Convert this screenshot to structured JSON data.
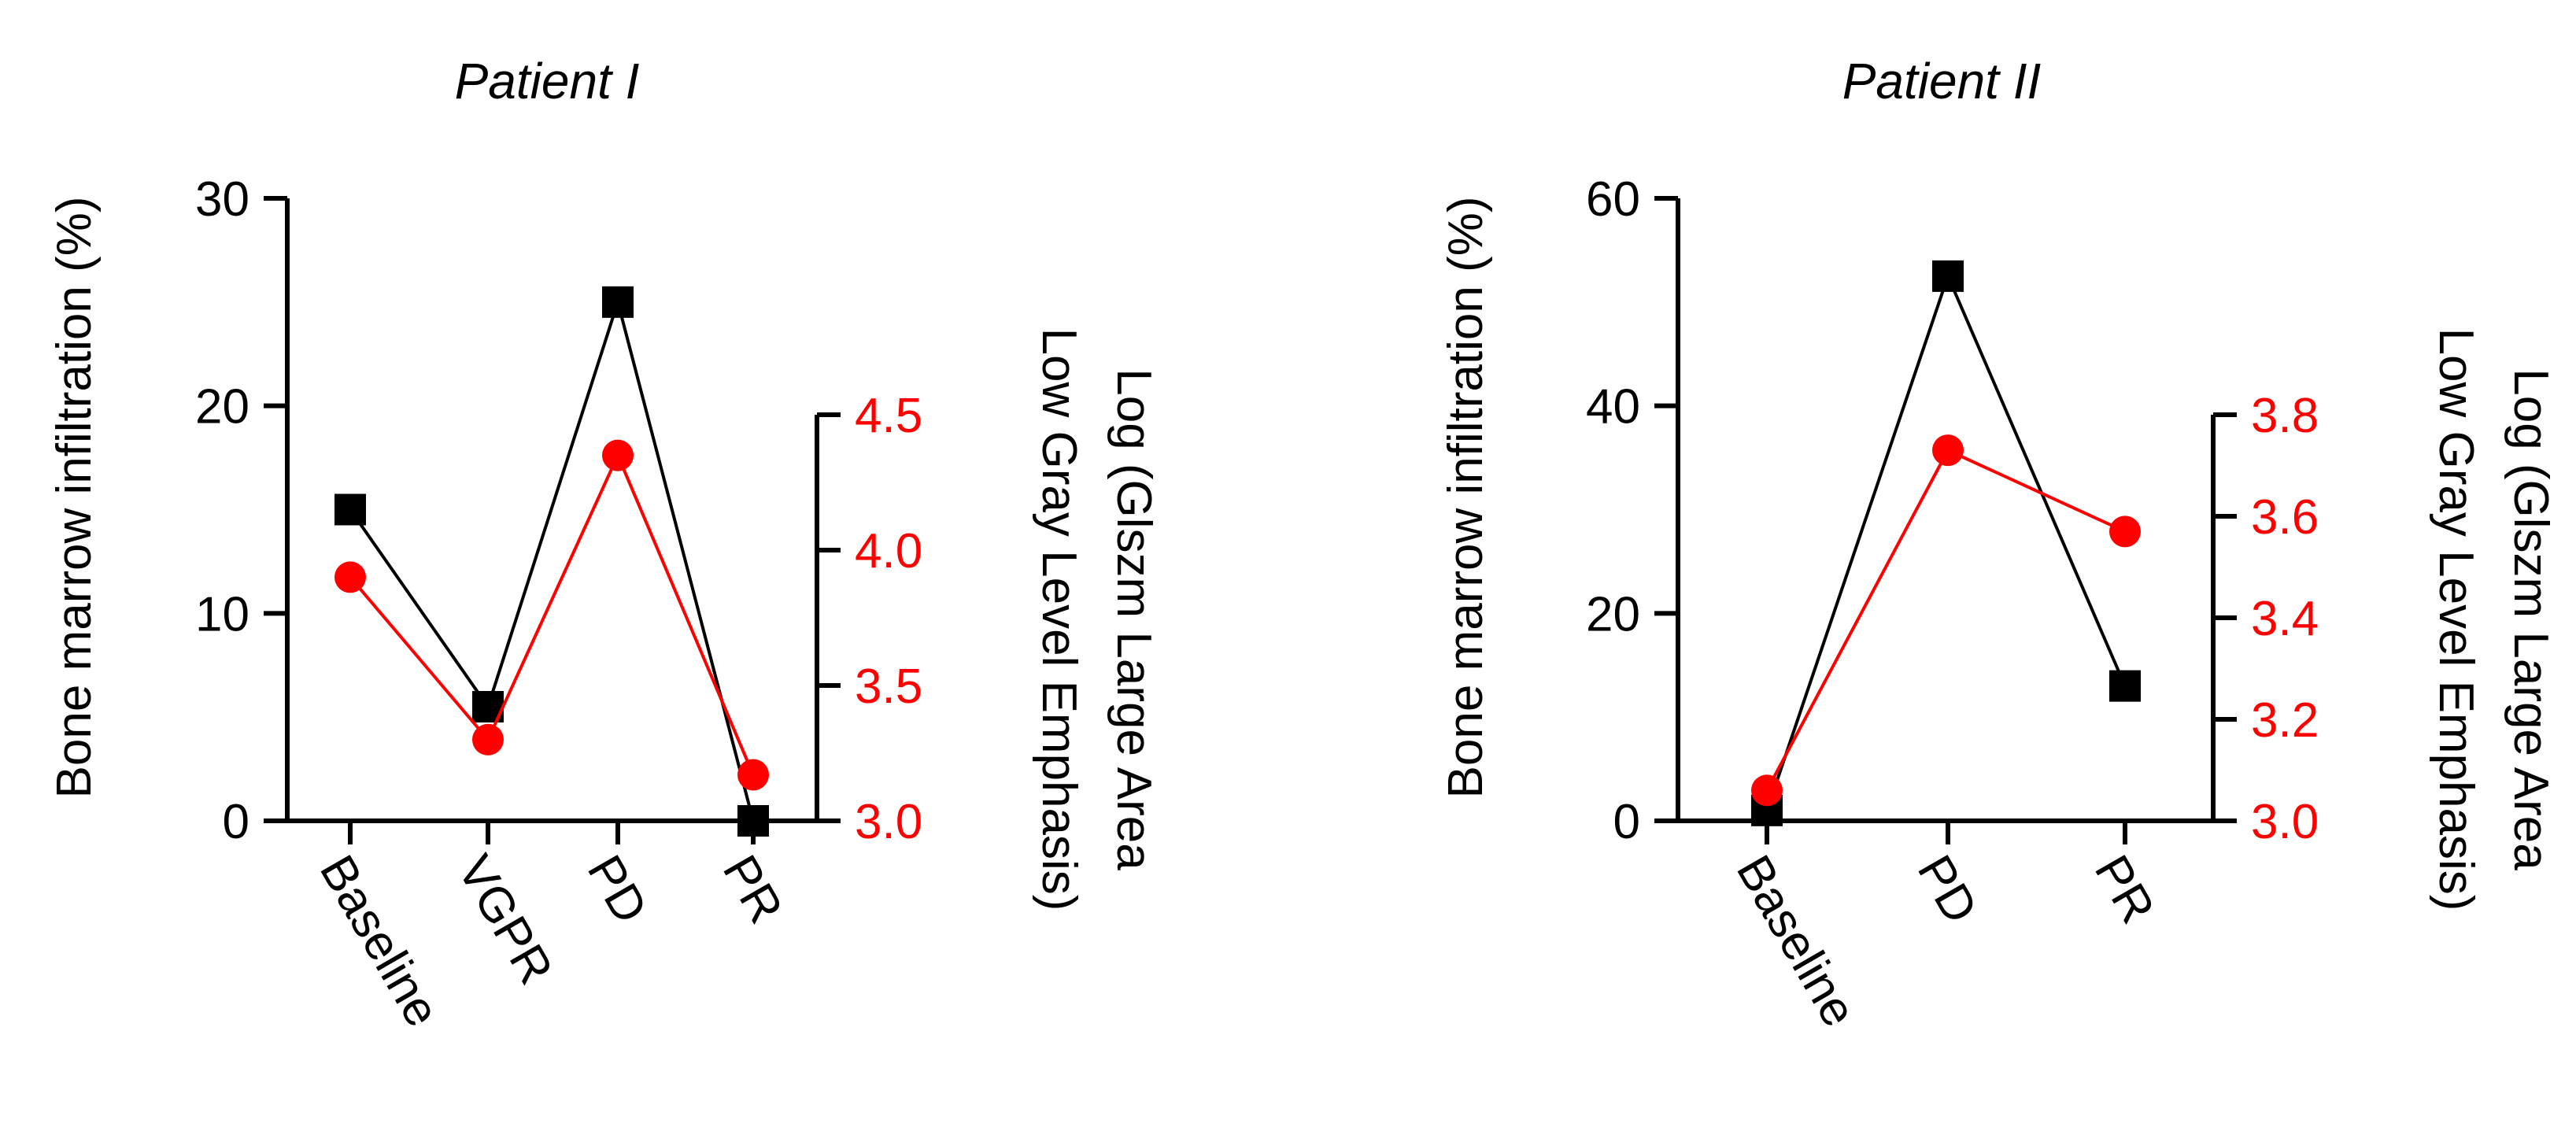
{
  "colors": {
    "primary": "#000000",
    "secondary": "#ff0000",
    "background": "#ffffff"
  },
  "chart_data": [
    {
      "type": "line",
      "title": "Patient I",
      "categories": [
        "Baseline",
        "VGPR",
        "PD",
        "PR"
      ],
      "ylabel": "Bone marrow infiltration (%)",
      "ylim": [
        0,
        30
      ],
      "yticks": [
        "0",
        "10",
        "20",
        "30"
      ],
      "y2label_line1": "Log (Glszm Large Area",
      "y2label_line2": "Low Gray Level Emphasis)",
      "y2lim": [
        3.0,
        4.5
      ],
      "y2ticks": [
        "3.0",
        "3.5",
        "4.0",
        "4.5"
      ],
      "series": [
        {
          "axis": "left",
          "color": "#000000",
          "marker": "square",
          "values": [
            15,
            5.5,
            25,
            0
          ]
        },
        {
          "axis": "right",
          "color": "#ff0000",
          "marker": "circle",
          "values": [
            3.9,
            3.3,
            4.35,
            3.17
          ]
        }
      ]
    },
    {
      "type": "line",
      "title": "Patient II",
      "categories": [
        "Baseline",
        "PD",
        "PR"
      ],
      "ylabel": "Bone marrow infiltration (%)",
      "ylim": [
        0,
        60
      ],
      "yticks": [
        "0",
        "20",
        "40",
        "60"
      ],
      "y2label_line1": "Log (Glszm Large Area",
      "y2label_line2": "Low Gray Level Emphasis)",
      "y2lim": [
        3.0,
        3.8
      ],
      "y2ticks": [
        "3.0",
        "3.2",
        "3.4",
        "3.6",
        "3.8"
      ],
      "series": [
        {
          "axis": "left",
          "color": "#000000",
          "marker": "square",
          "values": [
            1,
            52.5,
            13
          ]
        },
        {
          "axis": "right",
          "color": "#ff0000",
          "marker": "circle",
          "values": [
            3.06,
            3.73,
            3.57
          ]
        }
      ]
    }
  ]
}
